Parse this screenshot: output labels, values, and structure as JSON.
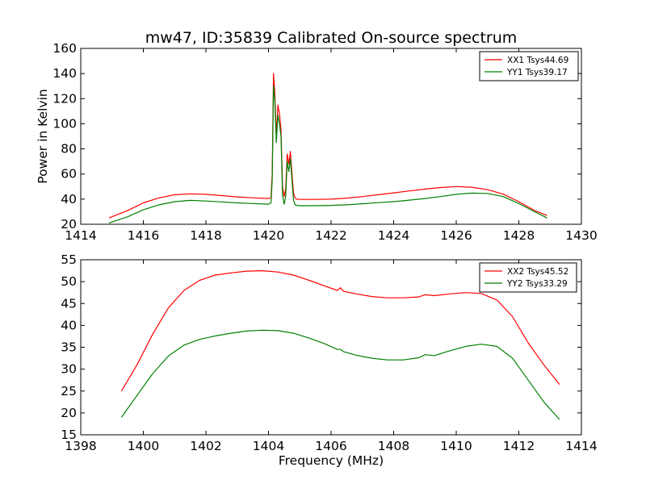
{
  "chart_data": [
    {
      "type": "line",
      "title": "mw47, ID:35839 Calibrated On-source spectrum",
      "xlabel": "",
      "ylabel": "Power in Kelvin",
      "xlim": [
        1414,
        1430
      ],
      "ylim": [
        20,
        160
      ],
      "xticks": [
        "1414",
        "1416",
        "1418",
        "1420",
        "1422",
        "1424",
        "1426",
        "1428",
        "1430"
      ],
      "yticks": [
        "20",
        "40",
        "60",
        "80",
        "100",
        "120",
        "140",
        "160"
      ],
      "legend_position": "upper-right",
      "grid": false,
      "series": [
        {
          "name": "XX1 Tsys44.69",
          "color": "#ff0000",
          "x": [
            1414.9,
            1415.5,
            1416.0,
            1416.5,
            1417.0,
            1417.5,
            1418.0,
            1418.5,
            1419.0,
            1419.5,
            1420.0,
            1420.08,
            1420.12,
            1420.16,
            1420.2,
            1420.25,
            1420.3,
            1420.35,
            1420.4,
            1420.45,
            1420.5,
            1420.55,
            1420.6,
            1420.65,
            1420.7,
            1420.75,
            1420.8,
            1420.85,
            1420.9,
            1421.0,
            1421.5,
            1422.0,
            1422.5,
            1423.0,
            1423.5,
            1424.0,
            1424.5,
            1425.0,
            1425.5,
            1426.0,
            1426.5,
            1427.0,
            1427.5,
            1428.0,
            1428.5,
            1428.9
          ],
          "y": [
            25,
            31,
            37,
            41,
            43.5,
            44.2,
            43.8,
            42.8,
            41.8,
            41,
            40.5,
            41,
            60,
            140,
            125,
            90,
            115,
            108,
            95,
            50,
            42,
            48,
            76,
            68,
            78,
            60,
            45,
            41,
            40,
            39.8,
            39.8,
            40,
            40.8,
            42,
            43.5,
            45,
            46.5,
            48,
            49.2,
            50,
            49.5,
            47.5,
            44,
            38,
            31,
            27
          ]
        },
        {
          "name": "YY1 Tsys39.17",
          "color": "#008000",
          "x": [
            1414.9,
            1415.5,
            1416.0,
            1416.5,
            1417.0,
            1417.5,
            1418.0,
            1418.5,
            1419.0,
            1419.5,
            1420.0,
            1420.08,
            1420.12,
            1420.16,
            1420.2,
            1420.25,
            1420.3,
            1420.35,
            1420.4,
            1420.45,
            1420.5,
            1420.55,
            1420.6,
            1420.65,
            1420.7,
            1420.75,
            1420.8,
            1420.85,
            1420.9,
            1421.0,
            1421.5,
            1422.0,
            1422.5,
            1423.0,
            1423.5,
            1424.0,
            1424.5,
            1425.0,
            1425.5,
            1426.0,
            1426.5,
            1427.0,
            1427.5,
            1428.0,
            1428.5,
            1428.9
          ],
          "y": [
            21,
            26,
            31.5,
            35.5,
            38,
            39,
            38.5,
            37.8,
            37,
            36.5,
            36,
            37,
            55,
            130,
            118,
            85,
            107,
            100,
            90,
            43,
            36,
            42,
            70,
            62,
            72,
            55,
            39,
            35.5,
            35,
            34.8,
            34.8,
            35,
            35.5,
            36.3,
            37.2,
            38,
            39.2,
            40.5,
            42,
            43.8,
            44.8,
            44.5,
            42,
            36.5,
            30,
            25
          ]
        }
      ]
    },
    {
      "type": "line",
      "title": "",
      "xlabel": "Frequency (MHz)",
      "ylabel": "",
      "xlim": [
        1398,
        1414
      ],
      "ylim": [
        15,
        55
      ],
      "xticks": [
        "1398",
        "1400",
        "1402",
        "1404",
        "1406",
        "1408",
        "1410",
        "1412",
        "1414"
      ],
      "yticks": [
        "15",
        "20",
        "25",
        "30",
        "35",
        "40",
        "45",
        "50",
        "55"
      ],
      "legend_position": "upper-right",
      "grid": false,
      "series": [
        {
          "name": "XX2 Tsys45.52",
          "color": "#ff0000",
          "x": [
            1399.3,
            1399.8,
            1400.3,
            1400.8,
            1401.3,
            1401.8,
            1402.3,
            1402.8,
            1403.3,
            1403.8,
            1404.3,
            1404.8,
            1405.3,
            1405.8,
            1406.2,
            1406.3,
            1406.4,
            1406.8,
            1407.3,
            1407.8,
            1408.3,
            1408.8,
            1409.0,
            1409.3,
            1409.8,
            1410.3,
            1410.8,
            1411.3,
            1411.8,
            1412.3,
            1412.8,
            1413.3
          ],
          "y": [
            25,
            31,
            38,
            44,
            48,
            50.3,
            51.5,
            52,
            52.4,
            52.5,
            52.2,
            51.5,
            50.3,
            49,
            48,
            48.6,
            47.8,
            47.2,
            46.6,
            46.3,
            46.3,
            46.5,
            47,
            46.8,
            47.2,
            47.5,
            47.3,
            45.8,
            42,
            36,
            31,
            26.5
          ]
        },
        {
          "name": "YY2 Tsys33.29",
          "color": "#008000",
          "x": [
            1399.3,
            1399.8,
            1400.3,
            1400.8,
            1401.3,
            1401.8,
            1402.3,
            1402.8,
            1403.3,
            1403.8,
            1404.3,
            1404.8,
            1405.3,
            1405.8,
            1406.2,
            1406.3,
            1406.4,
            1406.8,
            1407.3,
            1407.8,
            1408.3,
            1408.8,
            1409.0,
            1409.3,
            1409.8,
            1410.3,
            1410.8,
            1411.3,
            1411.8,
            1412.3,
            1412.8,
            1413.3
          ],
          "y": [
            19,
            24,
            29,
            33,
            35.5,
            36.8,
            37.6,
            38.2,
            38.7,
            38.9,
            38.8,
            38.2,
            37.1,
            35.8,
            34.5,
            34.5,
            34,
            33.2,
            32.5,
            32.1,
            32.1,
            32.6,
            33.3,
            33.1,
            34.2,
            35.2,
            35.7,
            35.2,
            32.5,
            27.5,
            22.5,
            18.5
          ]
        }
      ]
    }
  ]
}
